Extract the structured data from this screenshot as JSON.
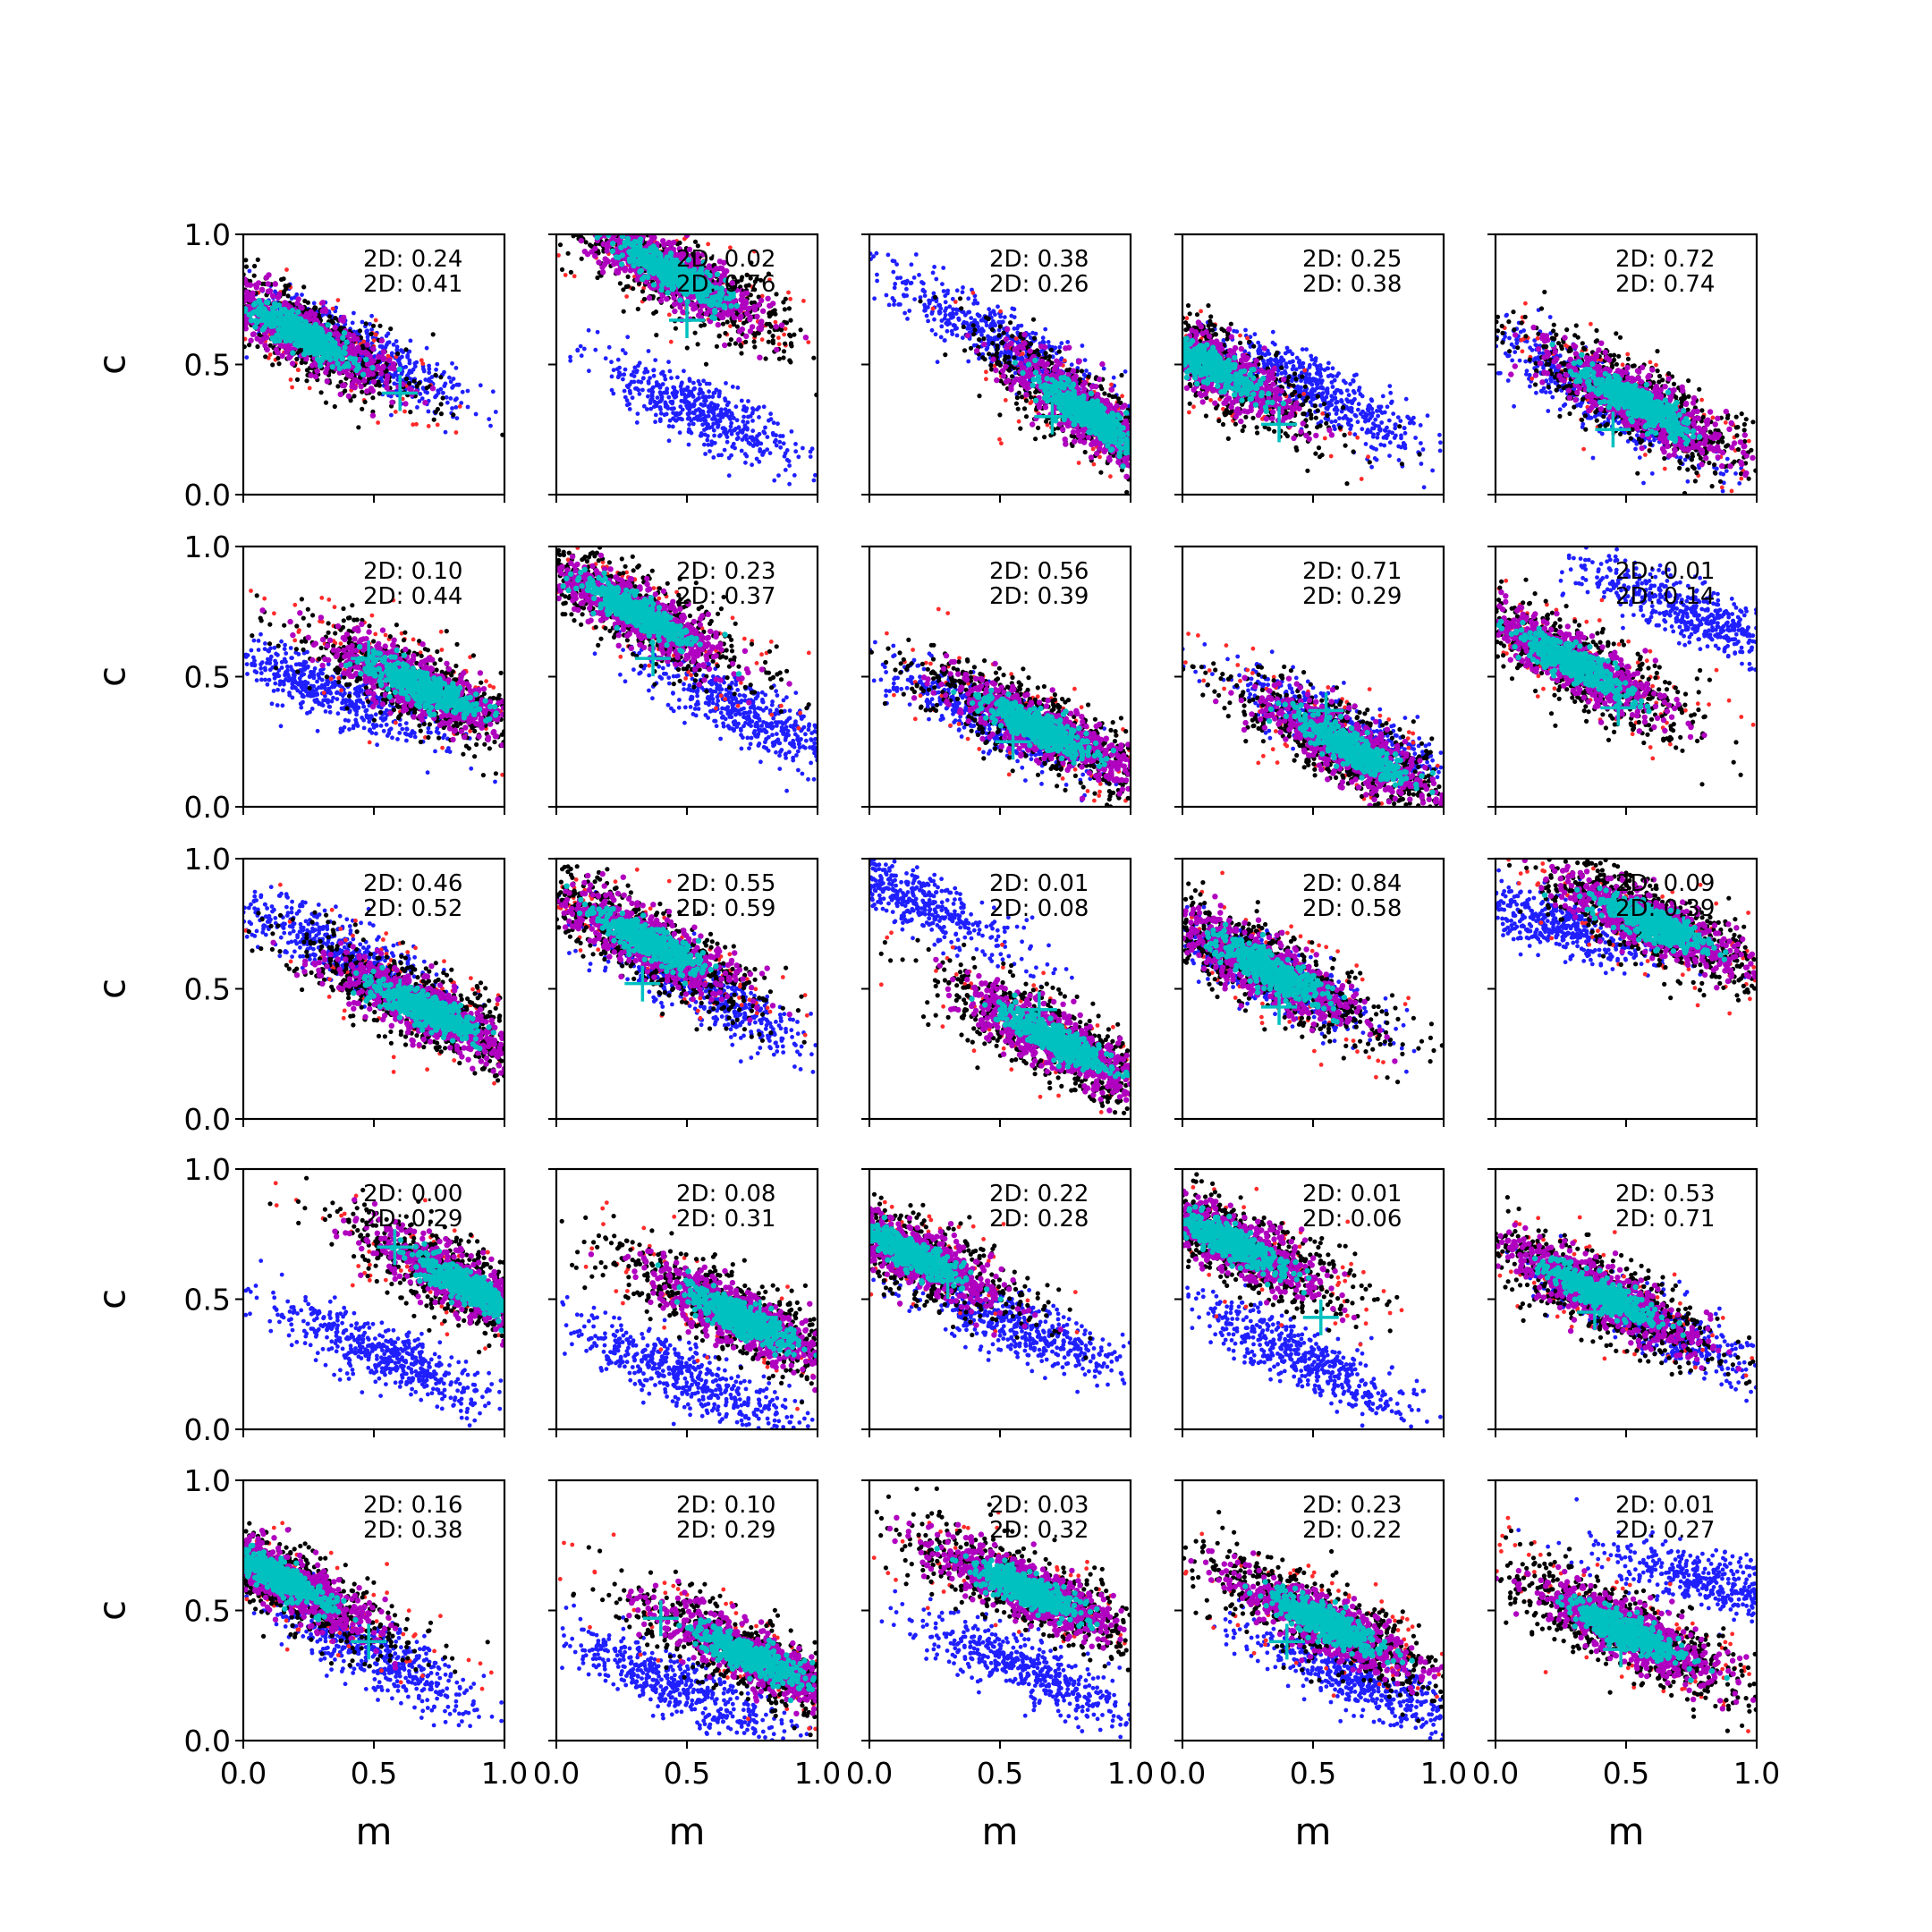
{
  "figure": {
    "rows": 5,
    "cols": 5,
    "xlabel": "m",
    "ylabel": "c",
    "xlim": [
      0,
      1
    ],
    "ylim": [
      0,
      1
    ],
    "x_ticks": [
      "0.0",
      "0.5",
      "1.0"
    ],
    "y_ticks": [
      "0.0",
      "0.5",
      "1.0"
    ],
    "colors": {
      "blue_cloud": "#1f1fff",
      "red_cloud": "#ff2a2a",
      "black_cloud": "#000000",
      "magenta_cloud": "#b000c0",
      "cyan_cloud": "#00c0c0",
      "true_marker": "#00c0c0"
    }
  },
  "chart_data": {
    "type": "scatter",
    "description_series": [
      "blue samples",
      "red samples",
      "black samples",
      "magenta samples",
      "cyan samples",
      "true value (+)"
    ],
    "panels": [
      {
        "row": 0,
        "col": 0,
        "ann": [
          "2D: 0.24",
          "2D: 0.41"
        ],
        "blue": {
          "center": [
            0.45,
            0.55
          ],
          "slope": -0.55
        },
        "main": {
          "center": [
            0.22,
            0.62
          ],
          "slope": -0.55
        },
        "marker": [
          0.6,
          0.39
        ]
      },
      {
        "row": 0,
        "col": 1,
        "ann": [
          "2D: 0.02",
          "2D: 0.76"
        ],
        "blue": {
          "center": [
            0.55,
            0.32
          ],
          "slope": -0.5
        },
        "main": {
          "center": [
            0.45,
            0.85
          ],
          "slope": -0.55
        },
        "marker": [
          0.5,
          0.67
        ]
      },
      {
        "row": 0,
        "col": 2,
        "ann": [
          "2D: 0.38",
          "2D: 0.26"
        ],
        "blue": {
          "center": [
            0.5,
            0.6
          ],
          "slope": -0.55
        },
        "main": {
          "center": [
            0.85,
            0.3
          ],
          "slope": -0.7
        },
        "marker": [
          0.7,
          0.3
        ]
      },
      {
        "row": 0,
        "col": 3,
        "ann": [
          "2D: 0.25",
          "2D: 0.38"
        ],
        "blue": {
          "center": [
            0.55,
            0.38
          ],
          "slope": -0.55
        },
        "main": {
          "center": [
            0.1,
            0.5
          ],
          "slope": -0.6
        },
        "marker": [
          0.37,
          0.27
        ]
      },
      {
        "row": 0,
        "col": 4,
        "ann": [
          "2D: 0.72",
          "2D: 0.74"
        ],
        "blue": {
          "center": [
            0.4,
            0.38
          ],
          "slope": -0.6
        },
        "main": {
          "center": [
            0.55,
            0.35
          ],
          "slope": -0.55
        },
        "marker": [
          0.45,
          0.25
        ]
      },
      {
        "row": 1,
        "col": 0,
        "ann": [
          "2D: 0.10",
          "2D: 0.44"
        ],
        "blue": {
          "center": [
            0.3,
            0.45
          ],
          "slope": -0.4
        },
        "main": {
          "center": [
            0.68,
            0.46
          ],
          "slope": -0.45
        },
        "marker": [
          0.48,
          0.57
        ]
      },
      {
        "row": 1,
        "col": 1,
        "ann": [
          "2D: 0.23",
          "2D: 0.37"
        ],
        "blue": {
          "center": [
            0.75,
            0.35
          ],
          "slope": -0.5
        },
        "main": {
          "center": [
            0.3,
            0.75
          ],
          "slope": -0.55
        },
        "marker": [
          0.37,
          0.57
        ]
      },
      {
        "row": 1,
        "col": 2,
        "ann": [
          "2D: 0.56",
          "2D: 0.39"
        ],
        "blue": {
          "center": [
            0.45,
            0.35
          ],
          "slope": -0.5
        },
        "main": {
          "center": [
            0.65,
            0.3
          ],
          "slope": -0.5
        },
        "marker": [
          0.55,
          0.25
        ]
      },
      {
        "row": 1,
        "col": 3,
        "ann": [
          "2D: 0.71",
          "2D: 0.29"
        ],
        "blue": {
          "center": [
            0.6,
            0.3
          ],
          "slope": -0.5
        },
        "main": {
          "center": [
            0.65,
            0.22
          ],
          "slope": -0.55
        },
        "marker": [
          0.55,
          0.37
        ]
      },
      {
        "row": 1,
        "col": 4,
        "ann": [
          "2D: 0.01",
          "2D: 0.14"
        ],
        "blue": {
          "center": [
            0.75,
            0.75
          ],
          "slope": -0.45
        },
        "main": {
          "center": [
            0.3,
            0.55
          ],
          "slope": -0.55
        },
        "marker": [
          0.47,
          0.38
        ]
      },
      {
        "row": 2,
        "col": 0,
        "ann": [
          "2D: 0.46",
          "2D: 0.52"
        ],
        "blue": {
          "center": [
            0.35,
            0.65
          ],
          "slope": -0.5
        },
        "main": {
          "center": [
            0.7,
            0.42
          ],
          "slope": -0.5
        },
        "marker": [
          0.6,
          0.47
        ]
      },
      {
        "row": 2,
        "col": 1,
        "ann": [
          "2D: 0.55",
          "2D: 0.59"
        ],
        "blue": {
          "center": [
            0.55,
            0.5
          ],
          "slope": -0.55
        },
        "main": {
          "center": [
            0.35,
            0.68
          ],
          "slope": -0.55
        },
        "marker": [
          0.33,
          0.52
        ]
      },
      {
        "row": 2,
        "col": 2,
        "ann": [
          "2D: 0.01",
          "2D: 0.08"
        ],
        "blue": {
          "center": [
            0.15,
            0.85
          ],
          "slope": -0.5
        },
        "main": {
          "center": [
            0.72,
            0.3
          ],
          "slope": -0.55
        },
        "marker": [
          0.65,
          0.42
        ]
      },
      {
        "row": 2,
        "col": 3,
        "ann": [
          "2D: 0.84",
          "2D: 0.58"
        ],
        "blue": {
          "center": [
            0.3,
            0.58
          ],
          "slope": -0.5
        },
        "main": {
          "center": [
            0.33,
            0.57
          ],
          "slope": -0.55
        },
        "marker": [
          0.37,
          0.43
        ]
      },
      {
        "row": 2,
        "col": 4,
        "ann": [
          "2D: 0.09",
          "2D: 0.39"
        ],
        "blue": {
          "center": [
            0.2,
            0.75
          ],
          "slope": -0.3
        },
        "main": {
          "center": [
            0.6,
            0.75
          ],
          "slope": -0.45
        },
        "marker": [
          0.72,
          0.71
        ]
      },
      {
        "row": 3,
        "col": 0,
        "ann": [
          "2D: 0.00",
          "2D: 0.29"
        ],
        "blue": {
          "center": [
            0.55,
            0.28
          ],
          "slope": -0.45
        },
        "main": {
          "center": [
            0.85,
            0.55
          ],
          "slope": -0.55
        },
        "marker": [
          0.58,
          0.7
        ]
      },
      {
        "row": 3,
        "col": 1,
        "ann": [
          "2D: 0.08",
          "2D: 0.31"
        ],
        "blue": {
          "center": [
            0.5,
            0.2
          ],
          "slope": -0.45
        },
        "main": {
          "center": [
            0.7,
            0.43
          ],
          "slope": -0.5
        },
        "marker": [
          0.78,
          0.43
        ]
      },
      {
        "row": 3,
        "col": 2,
        "ann": [
          "2D: 0.22",
          "2D: 0.28"
        ],
        "blue": {
          "center": [
            0.6,
            0.38
          ],
          "slope": -0.4
        },
        "main": {
          "center": [
            0.15,
            0.68
          ],
          "slope": -0.5
        },
        "marker": [
          0.3,
          0.57
        ]
      },
      {
        "row": 3,
        "col": 3,
        "ann": [
          "2D: 0.01",
          "2D: 0.06"
        ],
        "blue": {
          "center": [
            0.45,
            0.28
          ],
          "slope": -0.5
        },
        "main": {
          "center": [
            0.18,
            0.72
          ],
          "slope": -0.5
        },
        "marker": [
          0.53,
          0.43
        ]
      },
      {
        "row": 3,
        "col": 4,
        "ann": [
          "2D: 0.53",
          "2D: 0.71"
        ],
        "blue": {
          "center": [
            0.6,
            0.4
          ],
          "slope": -0.5
        },
        "main": {
          "center": [
            0.4,
            0.52
          ],
          "slope": -0.5
        },
        "marker": [
          0.38,
          0.45
        ]
      },
      {
        "row": 4,
        "col": 0,
        "ann": [
          "2D: 0.16",
          "2D: 0.38"
        ],
        "blue": {
          "center": [
            0.5,
            0.33
          ],
          "slope": -0.55
        },
        "main": {
          "center": [
            0.15,
            0.62
          ],
          "slope": -0.55
        },
        "marker": [
          0.48,
          0.38
        ]
      },
      {
        "row": 4,
        "col": 1,
        "ann": [
          "2D: 0.10",
          "2D: 0.29"
        ],
        "blue": {
          "center": [
            0.45,
            0.22
          ],
          "slope": -0.45
        },
        "main": {
          "center": [
            0.75,
            0.32
          ],
          "slope": -0.5
        },
        "marker": [
          0.4,
          0.47
        ]
      },
      {
        "row": 4,
        "col": 2,
        "ann": [
          "2D: 0.03",
          "2D: 0.32"
        ],
        "blue": {
          "center": [
            0.6,
            0.28
          ],
          "slope": -0.45
        },
        "main": {
          "center": [
            0.6,
            0.58
          ],
          "slope": -0.45
        },
        "marker": [
          0.55,
          0.62
        ]
      },
      {
        "row": 4,
        "col": 3,
        "ann": [
          "2D: 0.23",
          "2D: 0.22"
        ],
        "blue": {
          "center": [
            0.7,
            0.22
          ],
          "slope": -0.45
        },
        "main": {
          "center": [
            0.55,
            0.45
          ],
          "slope": -0.5
        },
        "marker": [
          0.4,
          0.38
        ]
      },
      {
        "row": 4,
        "col": 4,
        "ann": [
          "2D: 0.01",
          "2D: 0.27"
        ],
        "blue": {
          "center": [
            0.85,
            0.6
          ],
          "slope": -0.3
        },
        "main": {
          "center": [
            0.5,
            0.42
          ],
          "slope": -0.5
        },
        "marker": [
          0.48,
          0.35
        ]
      }
    ]
  }
}
